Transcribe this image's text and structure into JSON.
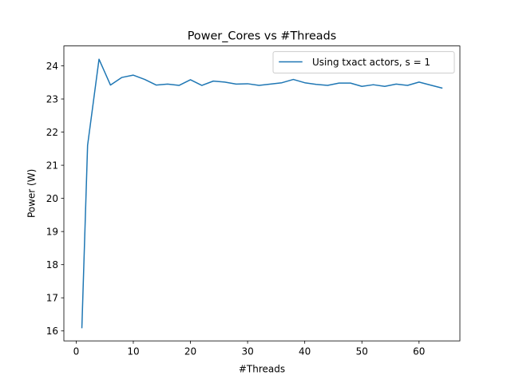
{
  "chart_data": {
    "type": "line",
    "title": "Power_Cores vs #Threads",
    "xlabel": "#Threads",
    "ylabel": "Power (W)",
    "xlim": [
      -2.15,
      67.15
    ],
    "ylim": [
      15.7,
      24.6
    ],
    "xticks": [
      0,
      10,
      20,
      30,
      40,
      50,
      60
    ],
    "yticks": [
      16,
      17,
      18,
      19,
      20,
      21,
      22,
      23,
      24
    ],
    "grid": false,
    "legend": "top-right",
    "series": [
      {
        "name": "Using txact actors, s = 1",
        "color": "#1f77b4",
        "x": [
          1,
          2,
          4,
          6,
          8,
          10,
          12,
          14,
          16,
          18,
          20,
          22,
          24,
          26,
          28,
          30,
          32,
          34,
          36,
          38,
          40,
          42,
          44,
          46,
          48,
          50,
          52,
          54,
          56,
          58,
          60,
          62,
          64
        ],
        "y": [
          16.1,
          21.6,
          24.2,
          23.42,
          23.65,
          23.72,
          23.59,
          23.42,
          23.45,
          23.41,
          23.58,
          23.41,
          23.54,
          23.51,
          23.45,
          23.46,
          23.41,
          23.45,
          23.49,
          23.59,
          23.49,
          23.44,
          23.41,
          23.48,
          23.48,
          23.38,
          23.43,
          23.38,
          23.45,
          23.41,
          23.51,
          23.42,
          23.33
        ]
      }
    ]
  }
}
